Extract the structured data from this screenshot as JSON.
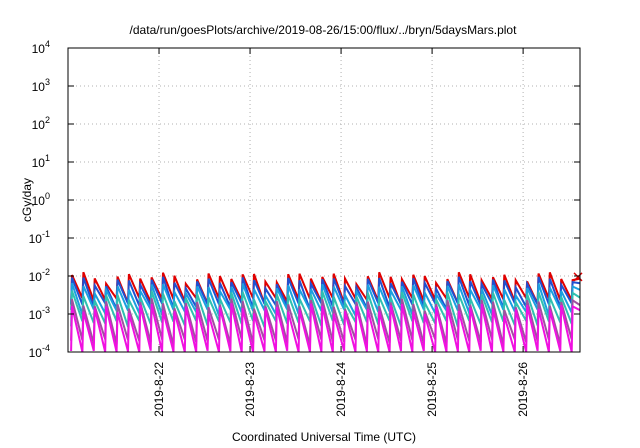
{
  "chart_data": {
    "type": "line",
    "title": "/data/run/goesPlots/archive/2019-08-26/15:00/flux/../bryn/5daysMars.plot",
    "xlabel": "Coordinated Universal Time (UTC)",
    "ylabel": "cGy/day",
    "yscale": "log",
    "ylim": [
      0.0001,
      10000
    ],
    "yticks": [
      {
        "exp": "-4"
      },
      {
        "exp": "-3"
      },
      {
        "exp": "-2"
      },
      {
        "exp": "-1"
      },
      {
        "exp": "0"
      },
      {
        "exp": "1"
      },
      {
        "exp": "2"
      },
      {
        "exp": "3"
      },
      {
        "exp": "4"
      }
    ],
    "ytick_base": "10",
    "xlim": [
      "2019-08-21T00:00",
      "2019-08-26T15:00"
    ],
    "xticks": [
      "2019-8-22",
      "2019-8-23",
      "2019-8-24",
      "2019-8-25",
      "2019-8-26"
    ],
    "grid": true,
    "cycles_per_day": 8,
    "series": [
      {
        "color": "#e00000",
        "peak": 0.0095,
        "trough": 0.0022
      },
      {
        "color": "#2050d0",
        "peak": 0.0072,
        "trough": 0.0016
      },
      {
        "color": "#1aa0e0",
        "peak": 0.0048,
        "trough": 0.0011
      },
      {
        "color": "#30c0b0",
        "peak": 0.003,
        "trough": 0.00055
      },
      {
        "color": "#a050a0",
        "peak": 0.0019,
        "trough": 0.00018
      },
      {
        "color": "#f010e0",
        "peak": 0.0014,
        "trough": 9e-05
      }
    ],
    "end_marker": {
      "color": "#e00000",
      "symbol": "x",
      "value": 0.0095
    }
  }
}
